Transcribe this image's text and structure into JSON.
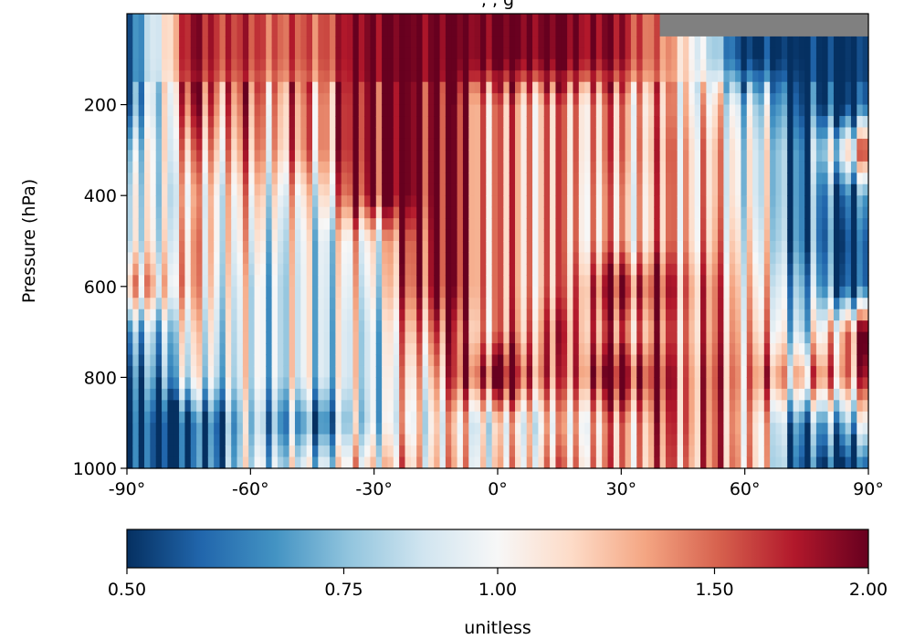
{
  "chart_data": {
    "type": "heatmap",
    "title": "",
    "title_fragment": ", , g",
    "xlabel": "",
    "ylabel": "Pressure (hPa)",
    "xlim": [
      -90,
      90
    ],
    "ylim": [
      1000,
      0
    ],
    "x_ticks": [
      {
        "value": -90,
        "label": "-90°"
      },
      {
        "value": -60,
        "label": "-60°"
      },
      {
        "value": -30,
        "label": "-30°"
      },
      {
        "value": 0,
        "label": "0°"
      },
      {
        "value": 30,
        "label": "30°"
      },
      {
        "value": 60,
        "label": "60°"
      },
      {
        "value": 90,
        "label": "90°"
      }
    ],
    "y_ticks": [
      {
        "value": 200,
        "label": "200"
      },
      {
        "value": 400,
        "label": "400"
      },
      {
        "value": 600,
        "label": "600"
      },
      {
        "value": 800,
        "label": "800"
      },
      {
        "value": 1000,
        "label": "1000"
      }
    ],
    "colormap": "RdBu_r",
    "missing_color": "#808080",
    "colors": [
      "#053061",
      "#2166ac",
      "#4393c3",
      "#92c5de",
      "#d1e5f0",
      "#f7f7f7",
      "#fddbc7",
      "#f4a582",
      "#d6604d",
      "#b2182b",
      "#67001f"
    ],
    "colorbar": {
      "label": "unitless",
      "range": [
        0.5,
        2.0
      ],
      "scale": "log",
      "ticks": [
        {
          "value": 0.5,
          "label": "0.50"
        },
        {
          "value": 0.75,
          "label": "0.75"
        },
        {
          "value": 1.0,
          "label": "1.00"
        },
        {
          "value": 1.5,
          "label": "1.50"
        },
        {
          "value": 2.0,
          "label": "2.00"
        }
      ]
    },
    "field_description_levels_hPa": [
      100,
      200,
      300,
      400,
      500,
      600,
      700,
      800,
      900,
      1000
    ],
    "field_description_latitudes": [
      -90,
      -75,
      -60,
      -45,
      -30,
      -15,
      0,
      15,
      30,
      45,
      60,
      75,
      90
    ],
    "approx_ratio_grid": [
      [
        0.5,
        1.8,
        1.6,
        1.5,
        2.0,
        2.0,
        2.0,
        2.0,
        1.8,
        1.2,
        0.5,
        0.5,
        0.5
      ],
      [
        0.5,
        1.6,
        1.4,
        1.3,
        2.0,
        2.0,
        1.3,
        1.3,
        1.3,
        1.2,
        0.9,
        0.5,
        0.5
      ],
      [
        0.7,
        1.3,
        1.3,
        1.3,
        2.0,
        2.0,
        1.3,
        1.3,
        1.3,
        1.3,
        1.0,
        0.6,
        1.6
      ],
      [
        0.8,
        1.1,
        1.1,
        1.0,
        2.0,
        2.0,
        1.3,
        1.3,
        1.2,
        1.3,
        1.0,
        0.6,
        0.6
      ],
      [
        0.8,
        1.2,
        1.0,
        0.9,
        1.1,
        2.0,
        1.3,
        1.3,
        1.2,
        1.3,
        1.1,
        0.6,
        0.5
      ],
      [
        1.2,
        1.2,
        0.9,
        0.9,
        1.0,
        2.0,
        1.3,
        1.3,
        1.8,
        1.5,
        1.2,
        0.7,
        0.5
      ],
      [
        0.6,
        1.0,
        0.9,
        0.9,
        0.9,
        1.6,
        1.3,
        1.5,
        1.4,
        1.4,
        1.3,
        0.8,
        2.0
      ],
      [
        0.5,
        0.9,
        0.9,
        0.9,
        0.9,
        1.3,
        2.0,
        1.4,
        2.0,
        1.5,
        1.4,
        1.3,
        1.6
      ],
      [
        0.5,
        0.5,
        0.8,
        0.6,
        0.9,
        1.1,
        1.0,
        1.1,
        1.3,
        1.5,
        1.3,
        0.6,
        0.9
      ],
      [
        0.5,
        0.5,
        0.9,
        0.9,
        1.2,
        1.2,
        1.1,
        1.3,
        1.3,
        1.4,
        1.4,
        0.5,
        0.5
      ]
    ]
  }
}
